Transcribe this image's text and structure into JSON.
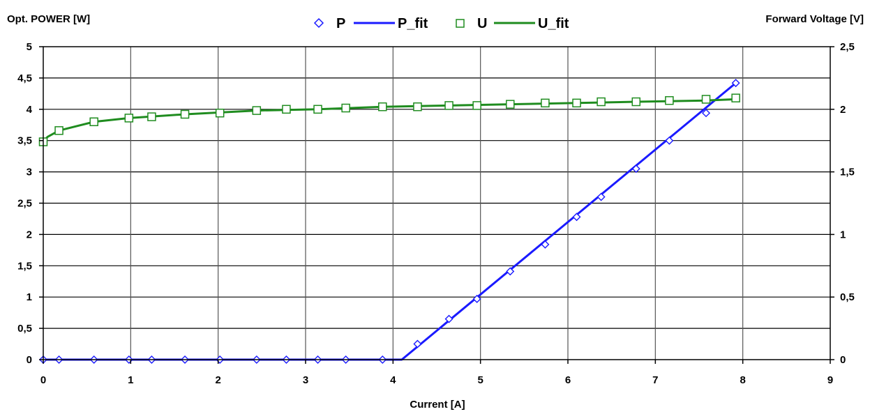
{
  "chart_data": {
    "type": "scatter",
    "title": "",
    "xlabel": "Current [A]",
    "ylabel": "Opt. POWER [W]",
    "y2label": "Forward Voltage [V]",
    "xlim": [
      0,
      9
    ],
    "ylim": [
      0,
      5
    ],
    "y2lim": [
      0,
      2.5
    ],
    "x_ticks": [
      0,
      1,
      2,
      3,
      4,
      5,
      6,
      7,
      8,
      9
    ],
    "x_tick_labels": [
      "0",
      "1",
      "2",
      "3",
      "4",
      "5",
      "6",
      "7",
      "8",
      "9"
    ],
    "y_ticks": [
      0,
      0.5,
      1,
      1.5,
      2,
      2.5,
      3,
      3.5,
      4,
      4.5,
      5
    ],
    "y_tick_labels": [
      "0",
      "0,5",
      "1",
      "1,5",
      "2",
      "2,5",
      "3",
      "3,5",
      "4",
      "4,5",
      "5"
    ],
    "y2_ticks": [
      0,
      0.5,
      1,
      1.5,
      2,
      2.5
    ],
    "y2_tick_labels": [
      "0",
      "0,5",
      "1",
      "1,5",
      "2",
      "2,5"
    ],
    "grid": true,
    "legend_position": "top-center",
    "series": [
      {
        "name": "P",
        "kind": "markers",
        "marker": "diamond",
        "axis": "left",
        "color": "#1a1aff",
        "x": [
          0,
          0.18,
          0.58,
          0.98,
          1.24,
          1.62,
          2.02,
          2.44,
          2.78,
          3.14,
          3.46,
          3.88,
          4.28,
          4.64,
          4.96,
          5.34,
          5.74,
          6.1,
          6.38,
          6.78,
          7.16,
          7.58,
          7.92
        ],
        "y": [
          0,
          0,
          0,
          0,
          0,
          0,
          0,
          0,
          0,
          0,
          0,
          0,
          0.25,
          0.65,
          0.97,
          1.41,
          1.84,
          2.28,
          2.6,
          3.05,
          3.5,
          3.94,
          4.42
        ]
      },
      {
        "name": "P_fit",
        "kind": "line",
        "axis": "left",
        "color": "#1a1aff",
        "x": [
          0,
          4.1,
          7.92
        ],
        "y": [
          0,
          0,
          4.42
        ]
      },
      {
        "name": "U",
        "kind": "markers",
        "marker": "square",
        "axis": "right",
        "color": "#1f8c1f",
        "x": [
          0,
          0.18,
          0.58,
          0.98,
          1.24,
          1.62,
          2.02,
          2.44,
          2.78,
          3.14,
          3.46,
          3.88,
          4.28,
          4.64,
          4.96,
          5.34,
          5.74,
          6.1,
          6.38,
          6.78,
          7.16,
          7.58,
          7.92
        ],
        "y": [
          1.74,
          1.83,
          1.9,
          1.93,
          1.94,
          1.96,
          1.97,
          1.99,
          2.0,
          2.0,
          2.01,
          2.02,
          2.02,
          2.03,
          2.03,
          2.04,
          2.05,
          2.05,
          2.06,
          2.06,
          2.07,
          2.08,
          2.09
        ]
      },
      {
        "name": "U_fit",
        "kind": "line",
        "axis": "right",
        "color": "#1f8c1f",
        "x": [
          0,
          0.05,
          0.18,
          0.58,
          0.98,
          1.62,
          2.44,
          3.14,
          3.88,
          4.64,
          5.34,
          6.1,
          6.78,
          7.58,
          7.92
        ],
        "y": [
          1.74,
          1.78,
          1.83,
          1.9,
          1.93,
          1.96,
          1.99,
          2.0,
          2.02,
          2.03,
          2.04,
          2.05,
          2.06,
          2.07,
          2.08
        ]
      }
    ]
  }
}
